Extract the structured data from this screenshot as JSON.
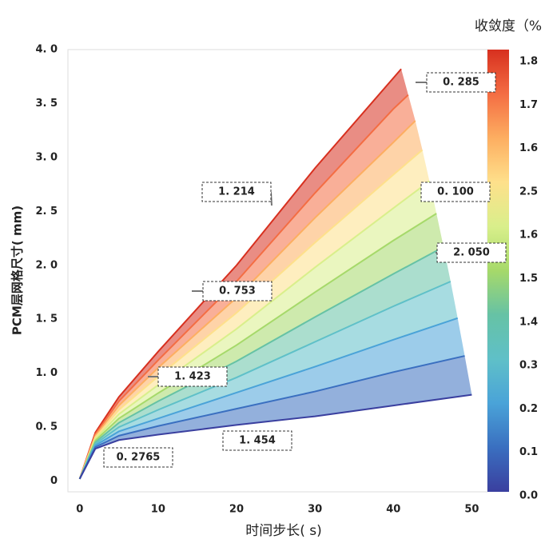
{
  "chart_data": {
    "type": "line",
    "colorbar_title": "收敛度（%",
    "x_label": "时间步长( s)",
    "y_label": "PCM层网格尺寸( mm)",
    "xlim": [
      -1.5,
      52
    ],
    "xticks": [
      0,
      10,
      20,
      30,
      40,
      50
    ],
    "ylim": [
      -0.1,
      4.0
    ],
    "yticks": [
      0,
      {
        "value": 0.5,
        "label": "0. 5"
      },
      {
        "value": 1.0,
        "label": "1. 0"
      },
      {
        "value": 1.5,
        "label": "1. 5"
      },
      {
        "value": 2.0,
        "label": "2. 0"
      },
      {
        "value": 2.5,
        "label": "2. 5"
      },
      {
        "value": 3.0,
        "label": "3. 0"
      },
      {
        "value": 3.5,
        "label": "3. 5"
      },
      {
        "value": 4.0,
        "label": "4. 0"
      }
    ],
    "colorbar_labels": [
      "0.0",
      "0.1",
      "0.2",
      "0.3",
      "1.4",
      "1.5",
      "1.6",
      "2.5",
      "1.6",
      "1.7",
      "1.8"
    ],
    "annotations": [
      "0. 285",
      "1. 214",
      "0. 100",
      "2. 050",
      "0. 753",
      "1. 423",
      "1. 454",
      "0. 2765"
    ],
    "series": [
      {
        "color": "#d7301f",
        "x": [
          0,
          2,
          5,
          10,
          20,
          30,
          41
        ],
        "values": [
          0.02,
          0.45,
          0.78,
          1.2,
          2.0,
          2.9,
          3.82
        ]
      },
      {
        "color": "#f46d43",
        "x": [
          0,
          2,
          5,
          10,
          20,
          30,
          40,
          41.9
        ],
        "values": [
          0.02,
          0.435,
          0.74,
          1.12,
          1.85,
          2.67,
          3.45,
          3.58
        ]
      },
      {
        "color": "#fdae61",
        "x": [
          0,
          2,
          5,
          10,
          20,
          30,
          40,
          42.8
        ],
        "values": [
          0.02,
          0.42,
          0.7,
          1.05,
          1.7,
          2.44,
          3.14,
          3.34
        ]
      },
      {
        "color": "#fee08b",
        "x": [
          0,
          2,
          5,
          10,
          20,
          30,
          40,
          43.7
        ],
        "values": [
          0.02,
          0.405,
          0.66,
          0.97,
          1.56,
          2.21,
          2.84,
          3.07
        ]
      },
      {
        "color": "#d9ef8b",
        "x": [
          0,
          2,
          5,
          10,
          20,
          30,
          40,
          44.6
        ],
        "values": [
          0.02,
          0.39,
          0.62,
          0.89,
          1.41,
          1.98,
          2.53,
          2.78
        ]
      },
      {
        "color": "#a6d96a",
        "x": [
          0,
          2,
          5,
          10,
          20,
          30,
          40,
          45.5
        ],
        "values": [
          0.02,
          0.375,
          0.58,
          0.815,
          1.26,
          1.75,
          2.23,
          2.48
        ]
      },
      {
        "color": "#66c2a5",
        "x": [
          0,
          2,
          5,
          10,
          20,
          30,
          40,
          46.4
        ],
        "values": [
          0.02,
          0.36,
          0.54,
          0.74,
          1.11,
          1.52,
          1.92,
          2.17
        ]
      },
      {
        "color": "#5fc0c8",
        "x": [
          0,
          2,
          5,
          10,
          20,
          30,
          40,
          47.3
        ],
        "values": [
          0.02,
          0.345,
          0.5,
          0.66,
          0.96,
          1.29,
          1.62,
          1.85
        ]
      },
      {
        "color": "#4aa3d8",
        "x": [
          0,
          2,
          5,
          10,
          20,
          30,
          40,
          48.2
        ],
        "values": [
          0.02,
          0.33,
          0.46,
          0.58,
          0.82,
          1.06,
          1.31,
          1.51
        ]
      },
      {
        "color": "#3a6fc0",
        "x": [
          0,
          2,
          5,
          10,
          20,
          30,
          40,
          49.1
        ],
        "values": [
          0.02,
          0.315,
          0.42,
          0.51,
          0.67,
          0.83,
          1.01,
          1.16
        ]
      },
      {
        "color": "#3a3f9f",
        "x": [
          0,
          2,
          5,
          10,
          20,
          30,
          40,
          50
        ],
        "values": [
          0.02,
          0.3,
          0.38,
          0.43,
          0.52,
          0.6,
          0.7,
          0.8
        ]
      }
    ]
  }
}
